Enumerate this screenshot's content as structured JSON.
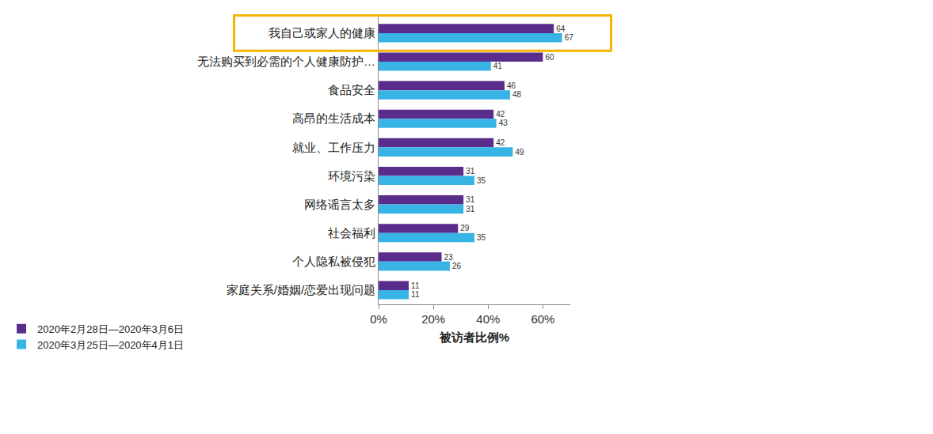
{
  "chart_data": {
    "type": "bar",
    "orientation": "horizontal",
    "x_label": "被访者比例%",
    "categories": [
      "我自己或家人的健康",
      "无法购买到必需的个人健康防护…",
      "食品安全",
      "高昂的生活成本",
      "就业、工作压力",
      "环境污染",
      "网络谣言太多",
      "社会福利",
      "个人隐私被侵犯",
      "家庭关系/婚姻/恋爱出现问题"
    ],
    "series": [
      {
        "name": "2020年2月28日—2020年3月6日",
        "color": "#5a2d8c",
        "values": [
          64,
          60,
          46,
          42,
          42,
          31,
          31,
          29,
          23,
          11
        ]
      },
      {
        "name": "2020年3月25日—2020年4月1日",
        "color": "#38b3e6",
        "values": [
          67,
          41,
          48,
          43,
          49,
          35,
          31,
          35,
          26,
          11
        ]
      }
    ],
    "xlim": [
      0,
      70
    ],
    "xticks": [
      {
        "value": 0,
        "label": "0%"
      },
      {
        "value": 20,
        "label": "20%"
      },
      {
        "value": 40,
        "label": "40%"
      },
      {
        "value": 60,
        "label": "60%"
      }
    ],
    "grid": false,
    "legend": "bottom left",
    "data_labels": true
  }
}
